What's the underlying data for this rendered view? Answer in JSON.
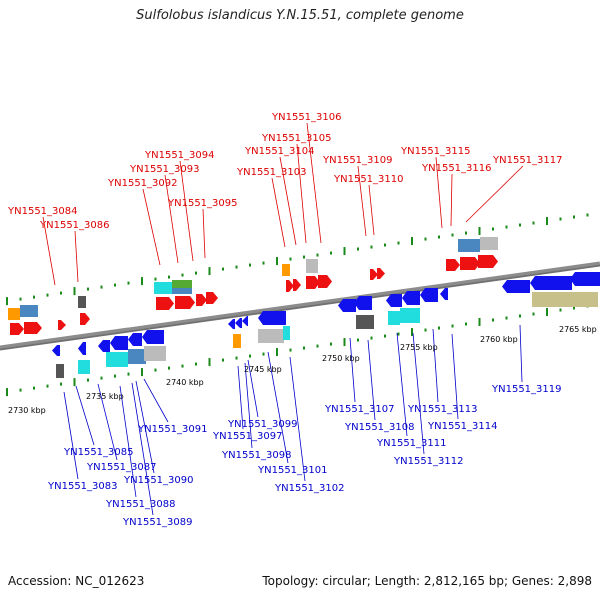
{
  "title": "Sulfolobus islandicus Y.N.15.51, complete genome",
  "footer": {
    "accession": "Accession: NC_012623",
    "stats": "Topology: circular; Length: 2,812,165 bp; Genes: 2,898"
  },
  "colors": {
    "forward_label": "#dd0000",
    "reverse_label": "#0000cc",
    "axis": "#808080",
    "green_dots": "#1a8a1a",
    "forward_gene": "#ee1111",
    "reverse_gene": "#1111ee",
    "cyan": "#22dddd",
    "steel": "#4a86c0",
    "gray": "#bbbbbb",
    "dark": "#555555",
    "orange": "#ff9900",
    "olive": "#c8c08a",
    "green": "#55aa33"
  },
  "scale_ticks": [
    "2730 kbp",
    "2735 kbp",
    "2740 kbp",
    "2745 kbp",
    "2750 kbp",
    "2755 kbp",
    "2760 kbp",
    "2765 kbp"
  ],
  "forward_labels": [
    "YN1551_3084",
    "YN1551_3086",
    "YN1551_3092",
    "YN1551_3093",
    "YN1551_3094",
    "YN1551_3095",
    "YN1551_3103",
    "YN1551_3104",
    "YN1551_3105",
    "YN1551_3106",
    "YN1551_3109",
    "YN1551_3110",
    "YN1551_3115",
    "YN1551_3116",
    "YN1551_3117"
  ],
  "reverse_labels": [
    "YN1551_3083",
    "YN1551_3085",
    "YN1551_3087",
    "YN1551_3088",
    "YN1551_3089",
    "YN1551_3090",
    "YN1551_3091",
    "YN1551_3097",
    "YN1551_3098",
    "YN1551_3099",
    "YN1551_3101",
    "YN1551_3102",
    "YN1551_3107",
    "YN1551_3108",
    "YN1551_3111",
    "YN1551_3112",
    "YN1551_3113",
    "YN1551_3114",
    "YN1551_3119"
  ]
}
